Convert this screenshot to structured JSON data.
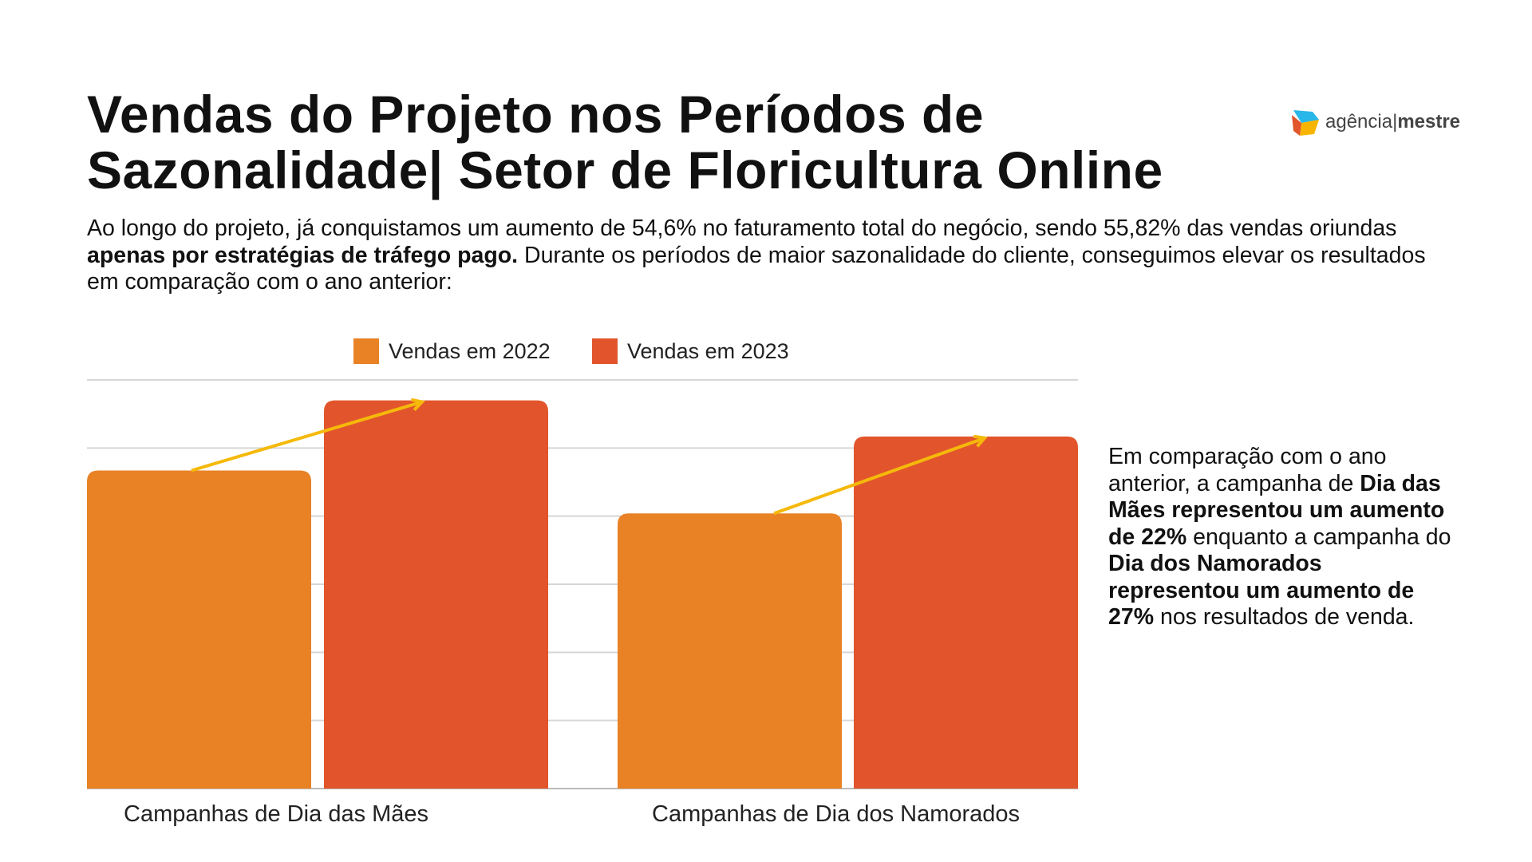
{
  "header": {
    "title_line1": "Vendas do Projeto nos Períodos de",
    "title_line2": "Sazonalidade| Setor de Floricultura Online",
    "intro_part1": "Ao longo do projeto, já conquistamos um aumento de 54,6% no faturamento total do negócio, sendo 55,82% das vendas oriundas ",
    "intro_bold": "apenas por estratégias de tráfego pago.",
    "intro_part2": " Durante os períodos de maior sazonalidade do cliente, conseguimos elevar os resultados em comparação com o ano anterior:"
  },
  "logo": {
    "text_light": "agência",
    "separator": "|",
    "text_bold": "mestre"
  },
  "side_text": {
    "p1": "Em comparação com o ano anterior, a campanha de ",
    "b1": "Dia das Mães representou um aumento de 22%",
    "p2": " enquanto a campanha do ",
    "b2": "Dia dos Namorados representou um aumento de 27%",
    "p3": " nos resultados de venda."
  },
  "chart_data": {
    "type": "bar",
    "categories": [
      "Campanhas de Dia das Mães",
      "Campanhas de Dia dos Namorados"
    ],
    "series": [
      {
        "name": "Vendas em 2022",
        "values": [
          4.67,
          4.04
        ],
        "color": "#E88225"
      },
      {
        "name": "Vendas em 2023",
        "values": [
          5.7,
          5.17
        ],
        "color": "#E2552C"
      }
    ],
    "ylim": [
      0,
      6
    ],
    "grid": true,
    "legend": "top",
    "arrow_color": "#F5B90A",
    "title": "",
    "xlabel": "",
    "ylabel": ""
  }
}
